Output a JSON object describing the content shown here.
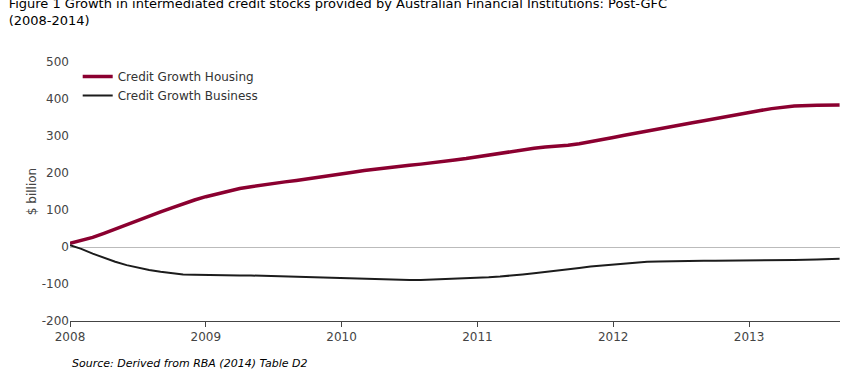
{
  "chart_data": {
    "type": "line",
    "title": "Figure 1 Growth in intermediated credit stocks provided by Australian Financial Institutions: Post-GFC",
    "subtitle": "(2008-2014)",
    "y_label": "$ billion",
    "annotations": [
      "Source: Derived from RBA (2014) Table D2"
    ],
    "x": [
      2008.0,
      2008.083,
      2008.167,
      2008.25,
      2008.333,
      2008.417,
      2008.5,
      2008.583,
      2008.667,
      2008.75,
      2008.833,
      2008.917,
      2009.0,
      2009.083,
      2009.167,
      2009.25,
      2009.333,
      2009.417,
      2009.5,
      2009.583,
      2009.667,
      2009.75,
      2009.833,
      2009.917,
      2010.0,
      2010.083,
      2010.167,
      2010.25,
      2010.333,
      2010.417,
      2010.5,
      2010.583,
      2010.667,
      2010.75,
      2010.833,
      2010.917,
      2011.0,
      2011.083,
      2011.167,
      2011.25,
      2011.333,
      2011.417,
      2011.5,
      2011.583,
      2011.667,
      2011.75,
      2011.833,
      2011.917,
      2012.0,
      2012.083,
      2012.167,
      2012.25,
      2012.333,
      2012.417,
      2012.5,
      2012.583,
      2012.667,
      2012.75,
      2012.833,
      2012.917,
      2013.0,
      2013.083,
      2013.167,
      2013.25,
      2013.333,
      2013.5,
      2013.583,
      2013.667
    ],
    "series": [
      {
        "name": "Credit Growth Housing",
        "color": "#8B0030",
        "values": [
          10,
          17,
          26,
          37,
          49,
          61,
          72,
          84,
          95,
          106,
          117,
          127,
          136,
          144,
          152,
          158,
          163,
          168,
          172,
          176,
          180,
          184,
          188,
          193,
          197,
          202,
          207,
          211,
          215,
          218,
          221,
          224,
          227,
          231,
          235,
          239,
          244,
          249,
          254,
          259,
          263,
          267,
          270,
          272,
          275,
          279,
          284,
          290,
          296,
          302,
          308,
          314,
          320,
          326,
          331,
          336,
          341,
          347,
          353,
          359,
          364,
          369,
          374,
          378,
          381,
          383,
          384,
          384
        ]
      },
      {
        "name": "Credit Growth Business",
        "color": "#1C1C1C",
        "values": [
          5,
          -5,
          -18,
          -30,
          -40,
          -49,
          -56,
          -62,
          -67,
          -71,
          -74,
          -75,
          -76,
          -76,
          -77,
          -77,
          -77,
          -78,
          -79,
          -80,
          -81,
          -82,
          -83,
          -84,
          -85,
          -86,
          -87,
          -88,
          -89,
          -89,
          -89,
          -89,
          -88,
          -87,
          -86,
          -85,
          -84,
          -82,
          -80,
          -78,
          -74,
          -71,
          -68,
          -65,
          -61,
          -57,
          -53,
          -50,
          -47,
          -44,
          -42,
          -40,
          -39,
          -38,
          -37,
          -37,
          -37,
          -37,
          -37,
          -37,
          -37,
          -36,
          -35,
          -35,
          -35,
          -34,
          -33,
          -32
        ]
      }
    ],
    "xlim": [
      2008.0,
      2013.67
    ],
    "xticks": [
      2008,
      2009,
      2010,
      2011,
      2012,
      2013
    ],
    "ylim": [
      -200,
      500
    ],
    "yticks": [
      -200,
      -100,
      0,
      100,
      200,
      300,
      400,
      500
    ],
    "grid": false,
    "legend": "upper left"
  }
}
